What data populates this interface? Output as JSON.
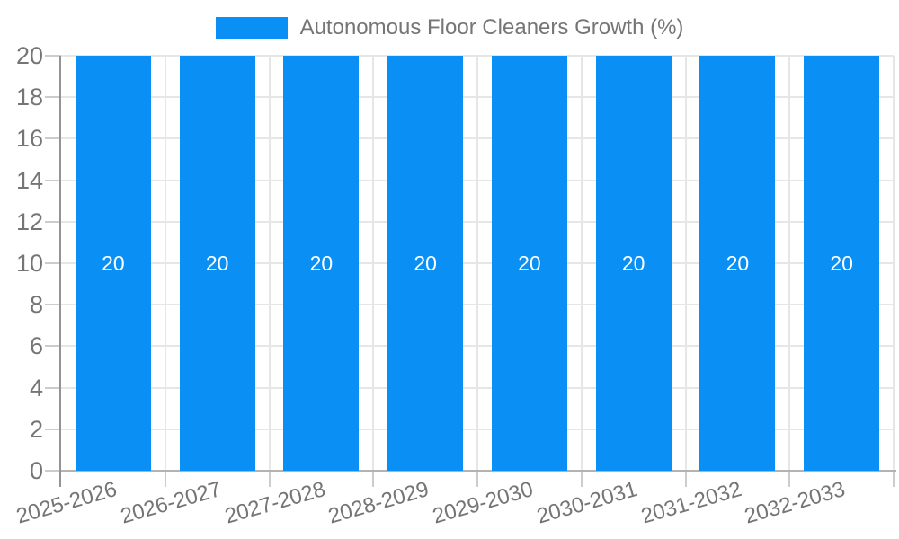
{
  "legend": {
    "label": "Autonomous Floor Cleaners Growth (%)"
  },
  "chart_data": {
    "type": "bar",
    "title": "Autonomous Floor Cleaners Growth (%)",
    "categories": [
      "2025-2026",
      "2026-2027",
      "2027-2028",
      "2028-2029",
      "2029-2030",
      "2030-2031",
      "2031-2032",
      "2032-2033"
    ],
    "series": [
      {
        "name": "Autonomous Floor Cleaners Growth (%)",
        "values": [
          20,
          20,
          20,
          20,
          20,
          20,
          20,
          20
        ]
      }
    ],
    "bar_value_labels": [
      "20",
      "20",
      "20",
      "20",
      "20",
      "20",
      "20",
      "20"
    ],
    "xlabel": "",
    "ylabel": "",
    "ylim": [
      0,
      20
    ],
    "yticks": [
      0,
      2,
      4,
      6,
      8,
      10,
      12,
      14,
      16,
      18,
      20
    ],
    "grid": true,
    "legend_position": "top",
    "colors": {
      "bar": "#0a90f5",
      "axis_label": "#757575",
      "bar_label": "#ffffff",
      "gridline": "#e6e6e6",
      "tick": "#cccccc",
      "baseline": "#b3b3b3",
      "axis_line": "#949494"
    }
  }
}
